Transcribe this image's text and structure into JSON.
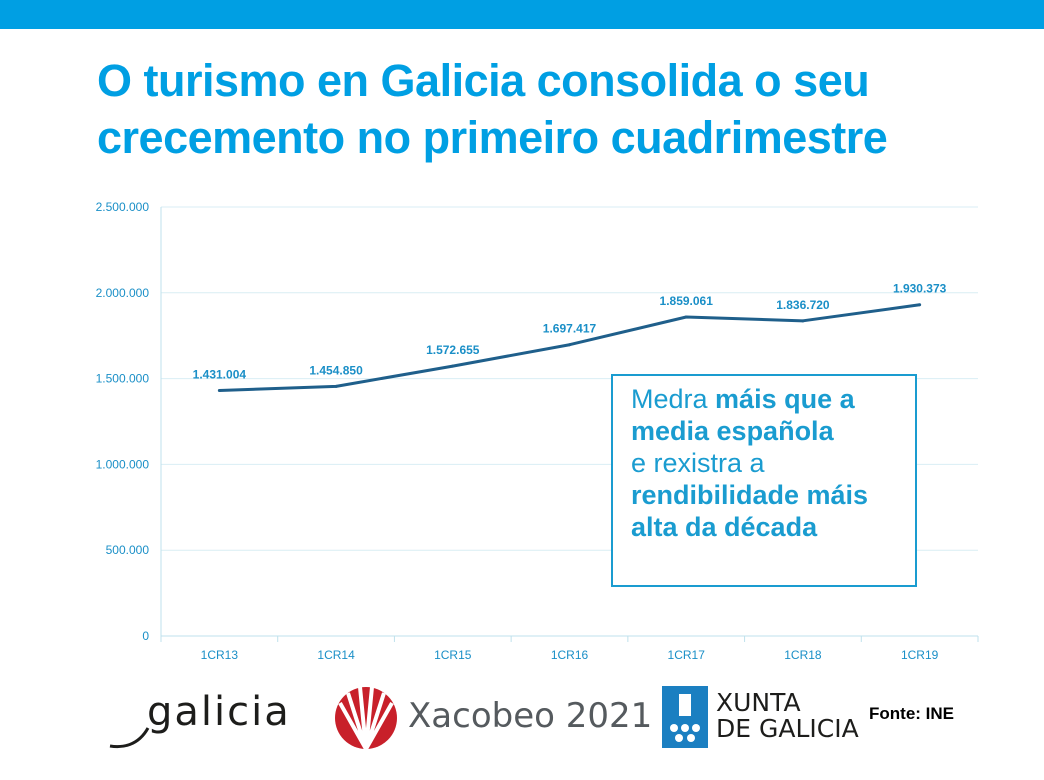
{
  "title_lines": [
    "O turismo en Galicia consolida o seu",
    "crecemento no primeiro cuadrimestre"
  ],
  "callout": {
    "l1a": "Medra ",
    "l1b": "máis que a",
    "l2": "media española",
    "l3": "e rexistra a",
    "l4": "rendibilidade máis",
    "l5": "alta da década"
  },
  "source": "Fonte: INE",
  "logos": {
    "galicia": "galicia",
    "xacobeo": "Xacobeo 2021",
    "xunta_line1": "XUNTA",
    "xunta_line2": "DE GALICIA"
  },
  "colors": {
    "accent": "#009FE3",
    "line": "#1F5F8B",
    "label": "#1A8FC7",
    "grid": "#D9EEF4"
  },
  "chart_data": {
    "type": "line",
    "categories": [
      "1CR13",
      "1CR14",
      "1CR15",
      "1CR16",
      "1CR17",
      "1CR18",
      "1CR19"
    ],
    "series": [
      {
        "values": [
          1431004,
          1454850,
          1572655,
          1697417,
          1859061,
          1836720,
          1930373
        ],
        "labels": [
          "1.431.004",
          "1.454.850",
          "1.572.655",
          "1.697.417",
          "1.859.061",
          "1.836.720",
          "1.930.373"
        ]
      }
    ],
    "yticks": [
      "0",
      "500.000",
      "1.000.000",
      "1.500.000",
      "2.000.000",
      "2.500.000"
    ],
    "ylim": [
      0,
      2500000
    ],
    "grid": true,
    "legend": "none"
  }
}
